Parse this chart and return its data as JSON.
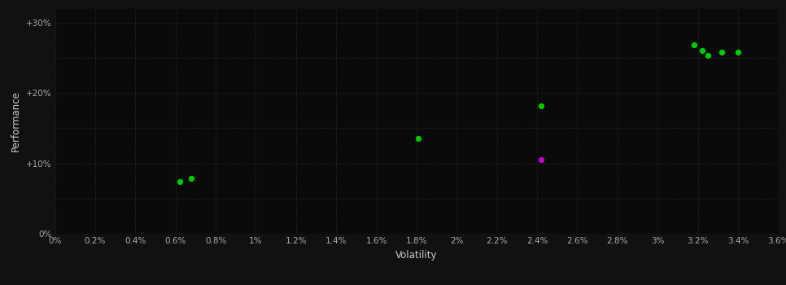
{
  "background_color": "#111111",
  "plot_bg_color": "#0a0a0a",
  "grid_color": "#333333",
  "grid_linestyle": ":",
  "xlabel": "Volatility",
  "ylabel": "Performance",
  "xlim": [
    0.0,
    0.036
  ],
  "ylim": [
    0.0,
    0.32
  ],
  "xticks": [
    0.0,
    0.002,
    0.004,
    0.006,
    0.008,
    0.01,
    0.012,
    0.014,
    0.016,
    0.018,
    0.02,
    0.022,
    0.024,
    0.026,
    0.028,
    0.03,
    0.032,
    0.034,
    0.036
  ],
  "yticks": [
    0.0,
    0.05,
    0.1,
    0.15,
    0.2,
    0.25,
    0.3
  ],
  "ytick_labels_major": [
    0.0,
    0.1,
    0.2,
    0.3
  ],
  "ytick_label_map": {
    "0.0": "0%",
    "0.1": "+10%",
    "0.2": "+20%",
    "0.3": "+30%"
  },
  "xtick_labels": [
    "0%",
    "0.2%",
    "0.4%",
    "0.6%",
    "0.8%",
    "1%",
    "1.2%",
    "1.4%",
    "1.6%",
    "1.8%",
    "2%",
    "2.2%",
    "2.4%",
    "2.6%",
    "2.8%",
    "3%",
    "3.2%",
    "3.4%",
    "3.6%"
  ],
  "green_points": [
    [
      0.0062,
      0.074
    ],
    [
      0.0068,
      0.079
    ],
    [
      0.0181,
      0.135
    ],
    [
      0.0242,
      0.182
    ],
    [
      0.0318,
      0.268
    ],
    [
      0.0322,
      0.26
    ],
    [
      0.0325,
      0.253
    ],
    [
      0.0332,
      0.258
    ],
    [
      0.034,
      0.258
    ]
  ],
  "magenta_points": [
    [
      0.0242,
      0.105
    ]
  ],
  "green_color": "#00cc00",
  "magenta_color": "#cc00cc",
  "marker_size": 28,
  "tick_color": "#aaaaaa",
  "tick_fontsize": 7.5,
  "label_fontsize": 8.5,
  "label_color": "#cccccc"
}
